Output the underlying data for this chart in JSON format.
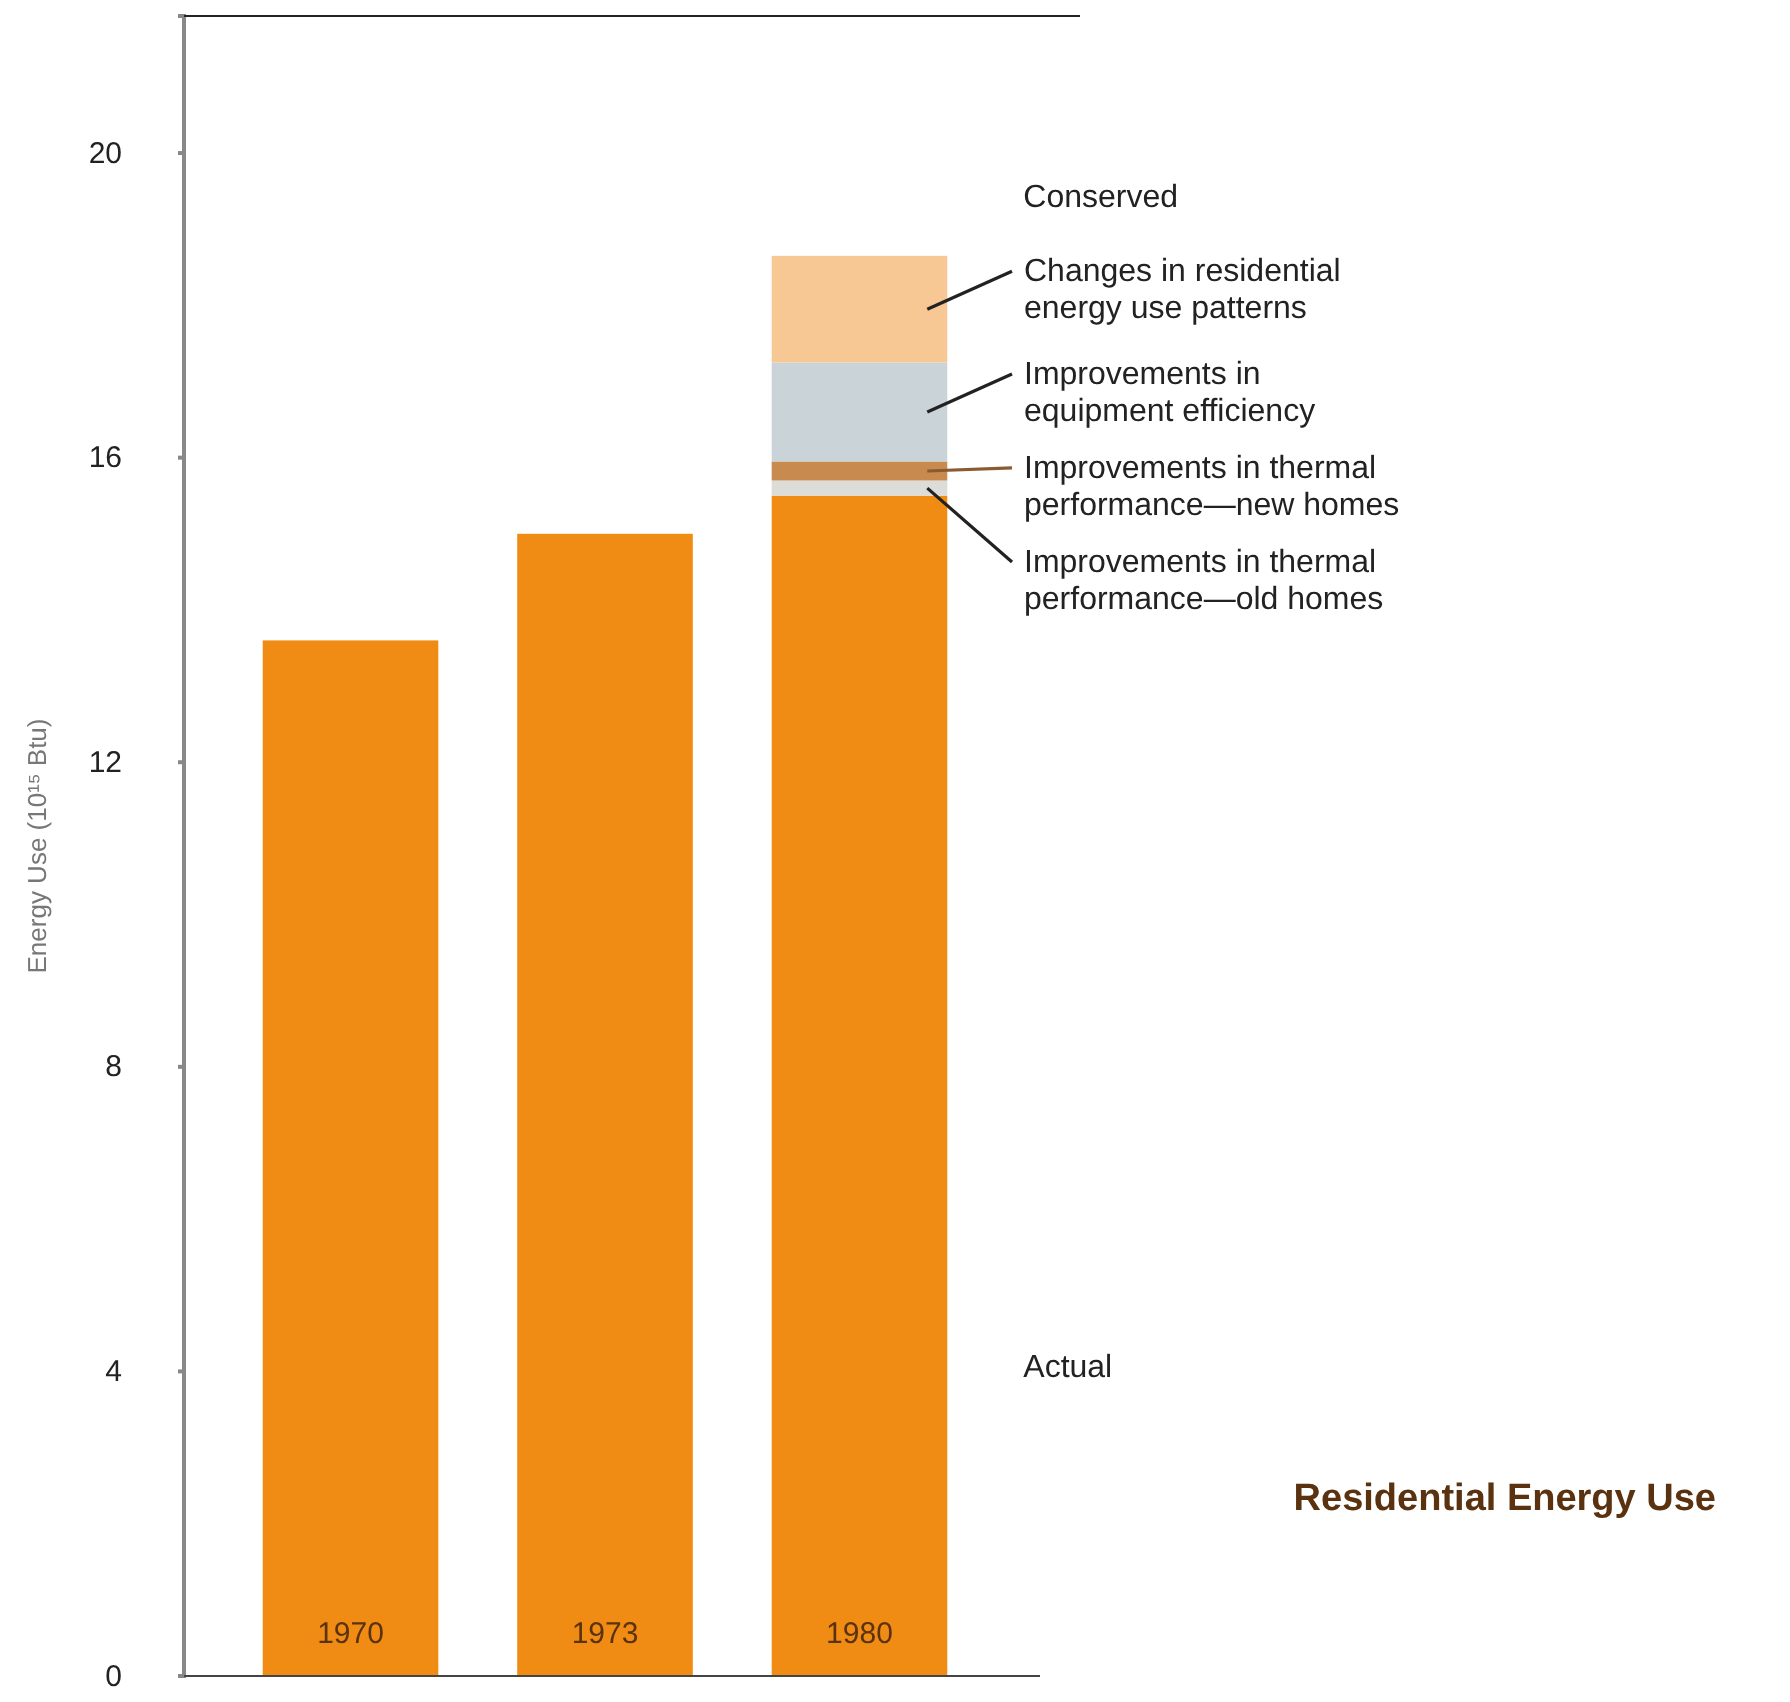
{
  "chart_data": {
    "type": "bar",
    "title": "Residential Energy Use",
    "ylabel": "Energy Use (10¹⁵ Btu)",
    "categories": [
      "1970",
      "1973",
      "1980"
    ],
    "stacked": true,
    "ylim": [
      0,
      21.8
    ],
    "yticks": [
      0,
      4,
      8,
      12,
      16,
      20
    ],
    "series": [
      {
        "name": null,
        "color": "#f08c14",
        "values": [
          13.6,
          15.0,
          15.5
        ]
      },
      {
        "name": "Improvements in thermal performance—old homes",
        "color": "#dcdcd8",
        "values": [
          null,
          null,
          0.2
        ]
      },
      {
        "name": "Improvements in thermal performance—new homes",
        "color": "#c98a50",
        "values": [
          null,
          null,
          0.25
        ]
      },
      {
        "name": "Improvements in equipment efficiency",
        "color": "#c9d3d8",
        "values": [
          null,
          null,
          1.3
        ]
      },
      {
        "name": "Changes in residential energy use patterns",
        "color": "#f8c894",
        "values": [
          null,
          null,
          1.4
        ]
      }
    ],
    "annotations": [
      "Conserved",
      "Actual"
    ]
  }
}
